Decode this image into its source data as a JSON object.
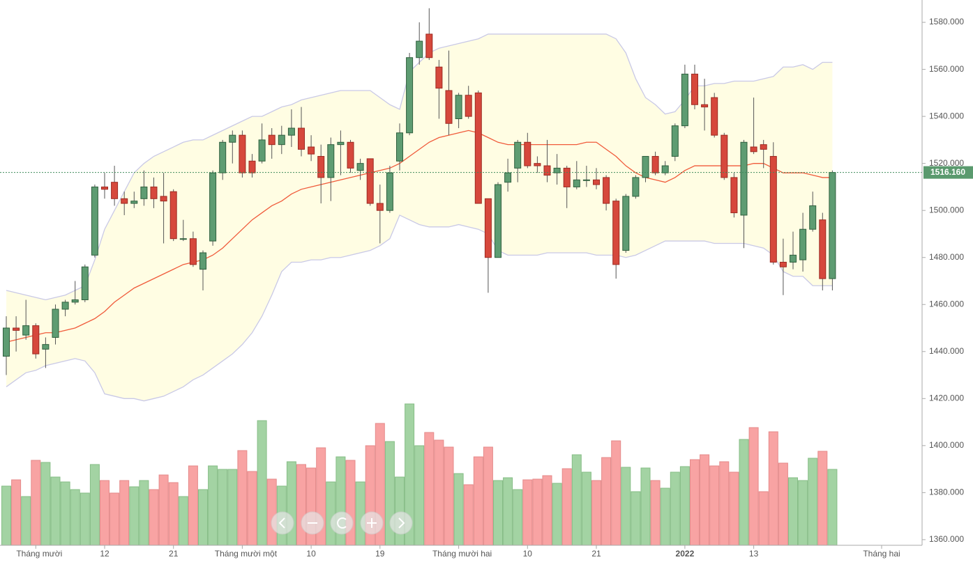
{
  "chart_data": {
    "type": "candlestick",
    "categories": [
      null,
      null,
      null,
      "Tháng mười",
      null,
      null,
      null,
      null,
      null,
      null,
      "12",
      null,
      null,
      null,
      null,
      null,
      null,
      "21",
      null,
      null,
      null,
      null,
      null,
      null,
      "Tháng mười một",
      null,
      null,
      null,
      null,
      null,
      null,
      "10",
      null,
      null,
      null,
      null,
      null,
      null,
      "19",
      null,
      null,
      null,
      null,
      null,
      null,
      null,
      "Tháng mười hai",
      null,
      null,
      null,
      null,
      null,
      null,
      "10",
      null,
      null,
      null,
      null,
      null,
      null,
      "21",
      null,
      null,
      null,
      null,
      null,
      null,
      null,
      null,
      "2022",
      null,
      null,
      null,
      null,
      null,
      null,
      "13",
      null,
      null,
      null,
      null,
      null,
      null,
      null,
      null
    ],
    "x_end_label": "Tháng hai",
    "open": [
      1438,
      1450,
      1447,
      1451,
      1441,
      1446,
      1458,
      1461,
      1462,
      1481,
      1510,
      1512,
      1505,
      1503,
      1505,
      1510,
      1506,
      1508,
      1488,
      1488,
      1475,
      1487,
      1516,
      1529,
      1532,
      1521,
      1521,
      1532,
      1528,
      1532,
      1535,
      1527,
      1523,
      1514,
      1528,
      1529,
      1517,
      1522,
      1503,
      1500,
      1521,
      1533,
      1565,
      1575,
      1561,
      1551,
      1539,
      1549,
      1550,
      1505,
      1480,
      1512,
      1518,
      1529,
      1520,
      1519,
      1516,
      1518,
      1510,
      1513,
      1513,
      1514,
      1504,
      1483,
      1506,
      1514,
      1523,
      1516,
      1523,
      1536,
      1558,
      1545,
      1548,
      1532,
      1514,
      1498,
      1527,
      1528,
      1523,
      1478,
      1478,
      1479,
      1492,
      1496,
      1471
    ],
    "high": [
      1455,
      1455,
      1462,
      1452,
      1446,
      1460,
      1462,
      1470,
      1477,
      1511,
      1516,
      1519,
      1508,
      1508,
      1517,
      1514,
      1516,
      1509,
      1496,
      1491,
      1483,
      1517,
      1530,
      1534,
      1534,
      1524,
      1537,
      1535,
      1536,
      1543,
      1544,
      1532,
      1528,
      1531,
      1534,
      1530,
      1522,
      1522,
      1511,
      1519,
      1537,
      1567,
      1580,
      1586,
      1564,
      1568,
      1550,
      1553,
      1551,
      1505,
      1512,
      1522,
      1530,
      1533,
      1523,
      1530,
      1524,
      1519,
      1521,
      1519,
      1518,
      1515,
      1505,
      1507,
      1515,
      1523,
      1525,
      1521,
      1537,
      1562,
      1562,
      1556,
      1550,
      1533,
      1516,
      1530,
      1548,
      1530,
      1529,
      1488,
      1491,
      1499,
      1508,
      1499,
      1517
    ],
    "low": [
      1430,
      1440,
      1445,
      1437,
      1433,
      1443,
      1455,
      1460,
      1461,
      1480,
      1505,
      1502,
      1498,
      1501,
      1502,
      1501,
      1486,
      1487,
      1487,
      1476,
      1466,
      1485,
      1513,
      1520,
      1514,
      1514,
      1520,
      1522,
      1524,
      1527,
      1523,
      1521,
      1503,
      1504,
      1515,
      1516,
      1513,
      1502,
      1486,
      1499,
      1517,
      1532,
      1562,
      1564,
      1539,
      1532,
      1535,
      1539,
      1503,
      1465,
      1480,
      1508,
      1512,
      1518,
      1516,
      1512,
      1511,
      1501,
      1509,
      1510,
      1509,
      1500,
      1471,
      1482,
      1505,
      1512,
      1515,
      1515,
      1521,
      1535,
      1543,
      1534,
      1531,
      1513,
      1497,
      1484,
      1524,
      1518,
      1477,
      1464,
      1475,
      1474,
      1491,
      1466,
      1466
    ],
    "close": [
      1450,
      1449,
      1451,
      1439,
      1443,
      1458,
      1461,
      1462,
      1476,
      1510,
      1509,
      1505,
      1503,
      1504,
      1510,
      1505,
      1504,
      1488,
      1488,
      1477,
      1482,
      1516,
      1529,
      1532,
      1516,
      1516,
      1530,
      1528,
      1532,
      1535,
      1526,
      1524,
      1514,
      1528,
      1529,
      1518,
      1520,
      1503,
      1500,
      1516,
      1533,
      1565,
      1572,
      1565,
      1552,
      1537,
      1549,
      1540,
      1503,
      1480,
      1511,
      1516,
      1529,
      1519,
      1519,
      1515,
      1518,
      1510,
      1513,
      1513,
      1511,
      1503,
      1477,
      1506,
      1514,
      1523,
      1516,
      1519,
      1536,
      1558,
      1545,
      1544,
      1532,
      1514,
      1499,
      1529,
      1525,
      1526,
      1478,
      1476,
      1481,
      1492,
      1502,
      1471,
      1516.16
    ],
    "volume": [
      85,
      94,
      70,
      122,
      119,
      98,
      91,
      80,
      75,
      116,
      93,
      75,
      93,
      84,
      93,
      80,
      101,
      90,
      70,
      114,
      80,
      114,
      109,
      109,
      136,
      106,
      179,
      95,
      85,
      120,
      116,
      111,
      140,
      91,
      127,
      122,
      91,
      143,
      175,
      149,
      98,
      203,
      143,
      162,
      151,
      141,
      103,
      87,
      127,
      141,
      93,
      97,
      80,
      94,
      95,
      100,
      89,
      110,
      130,
      105,
      93,
      126,
      150,
      112,
      77,
      111,
      93,
      82,
      105,
      113,
      123,
      130,
      114,
      120,
      105,
      152,
      169,
      77,
      163,
      118,
      97,
      93,
      125,
      135,
      109
    ],
    "bands": {
      "upper": [
        1466,
        1465,
        1464,
        1463,
        1462,
        1463,
        1464,
        1466,
        1468,
        1479,
        1492,
        1500,
        1508,
        1516,
        1520,
        1523,
        1525,
        1527,
        1529,
        1530,
        1530,
        1532,
        1534,
        1536,
        1538,
        1540,
        1540,
        1542,
        1544,
        1545,
        1547,
        1548,
        1549,
        1550,
        1551,
        1551,
        1551,
        1551,
        1548,
        1545,
        1543,
        1559,
        1563,
        1567,
        1569,
        1570,
        1571,
        1572,
        1573,
        1575,
        1575,
        1575,
        1575,
        1575,
        1575,
        1575,
        1575,
        1575,
        1575,
        1575,
        1575,
        1575,
        1573,
        1567,
        1556,
        1548,
        1545,
        1541,
        1542,
        1547,
        1553,
        1553,
        1554,
        1554,
        1555,
        1555,
        1555,
        1556,
        1557,
        1561,
        1561,
        1562,
        1560,
        1563,
        1563
      ],
      "middle": [
        1444,
        1445,
        1446,
        1447,
        1448,
        1448,
        1449,
        1450,
        1452,
        1454,
        1457,
        1461,
        1464,
        1467,
        1469,
        1471,
        1473,
        1475,
        1477,
        1478,
        1479,
        1481,
        1484,
        1488,
        1492,
        1496,
        1499,
        1502,
        1504,
        1507,
        1509,
        1510,
        1511,
        1512,
        1513,
        1514,
        1515,
        1516,
        1517,
        1518,
        1520,
        1523,
        1526,
        1529,
        1531,
        1532,
        1533,
        1534,
        1533,
        1531,
        1529,
        1528,
        1528,
        1528,
        1528,
        1528,
        1528,
        1528,
        1528,
        1529,
        1529,
        1526,
        1523,
        1519,
        1516,
        1514,
        1513,
        1512,
        1514,
        1517,
        1519,
        1519,
        1519,
        1519,
        1519,
        1519,
        1520,
        1520,
        1518,
        1516,
        1516,
        1516,
        1515,
        1514,
        1514
      ],
      "lower": [
        1425,
        1428,
        1431,
        1432,
        1434,
        1435,
        1436,
        1437,
        1436,
        1431,
        1422,
        1421,
        1420,
        1420,
        1419,
        1420,
        1421,
        1423,
        1425,
        1428,
        1430,
        1433,
        1436,
        1439,
        1443,
        1448,
        1455,
        1464,
        1474,
        1478,
        1478,
        1479,
        1479,
        1480,
        1480,
        1481,
        1482,
        1483,
        1485,
        1488,
        1498,
        1496,
        1494,
        1493,
        1493,
        1493,
        1494,
        1493,
        1492,
        1490,
        1483,
        1481,
        1481,
        1481,
        1481,
        1482,
        1482,
        1482,
        1482,
        1482,
        1481,
        1481,
        1481,
        1480,
        1481,
        1483,
        1485,
        1487,
        1487,
        1487,
        1487,
        1487,
        1486,
        1486,
        1486,
        1486,
        1485,
        1484,
        1481,
        1474,
        1472,
        1472,
        1468,
        1468,
        1468
      ]
    },
    "last_price": {
      "value": 1516.16,
      "label": "1516.160"
    },
    "ylim": [
      1357.6,
      1589.5
    ],
    "yticks": [
      {
        "value": 1360,
        "label": "1360.000"
      },
      {
        "value": 1380,
        "label": "1380.000"
      },
      {
        "value": 1400,
        "label": "1400.000"
      },
      {
        "value": 1420,
        "label": "1420.000"
      },
      {
        "value": 1440,
        "label": "1440.000"
      },
      {
        "value": 1460,
        "label": "1460.000"
      },
      {
        "value": 1480,
        "label": "1480.000"
      },
      {
        "value": 1500,
        "label": "1500.000"
      },
      {
        "value": 1520,
        "label": "1520.000"
      },
      {
        "value": 1540,
        "label": "1540.000"
      },
      {
        "value": 1560,
        "label": "1560.000"
      },
      {
        "value": 1580,
        "label": "1580.000"
      }
    ],
    "colors": {
      "up": "#5e9c72",
      "up_edge": "#2f5f3e",
      "down": "#d6483c",
      "down_edge": "#9c2a22",
      "volume_up": "#a3d3a3",
      "volume_down": "#f8a3a3",
      "band_fill": "#fffde3",
      "band_line": "#c9c9e6",
      "middle_line": "#f05a3a",
      "last_price": "#5a9a6e"
    }
  }
}
